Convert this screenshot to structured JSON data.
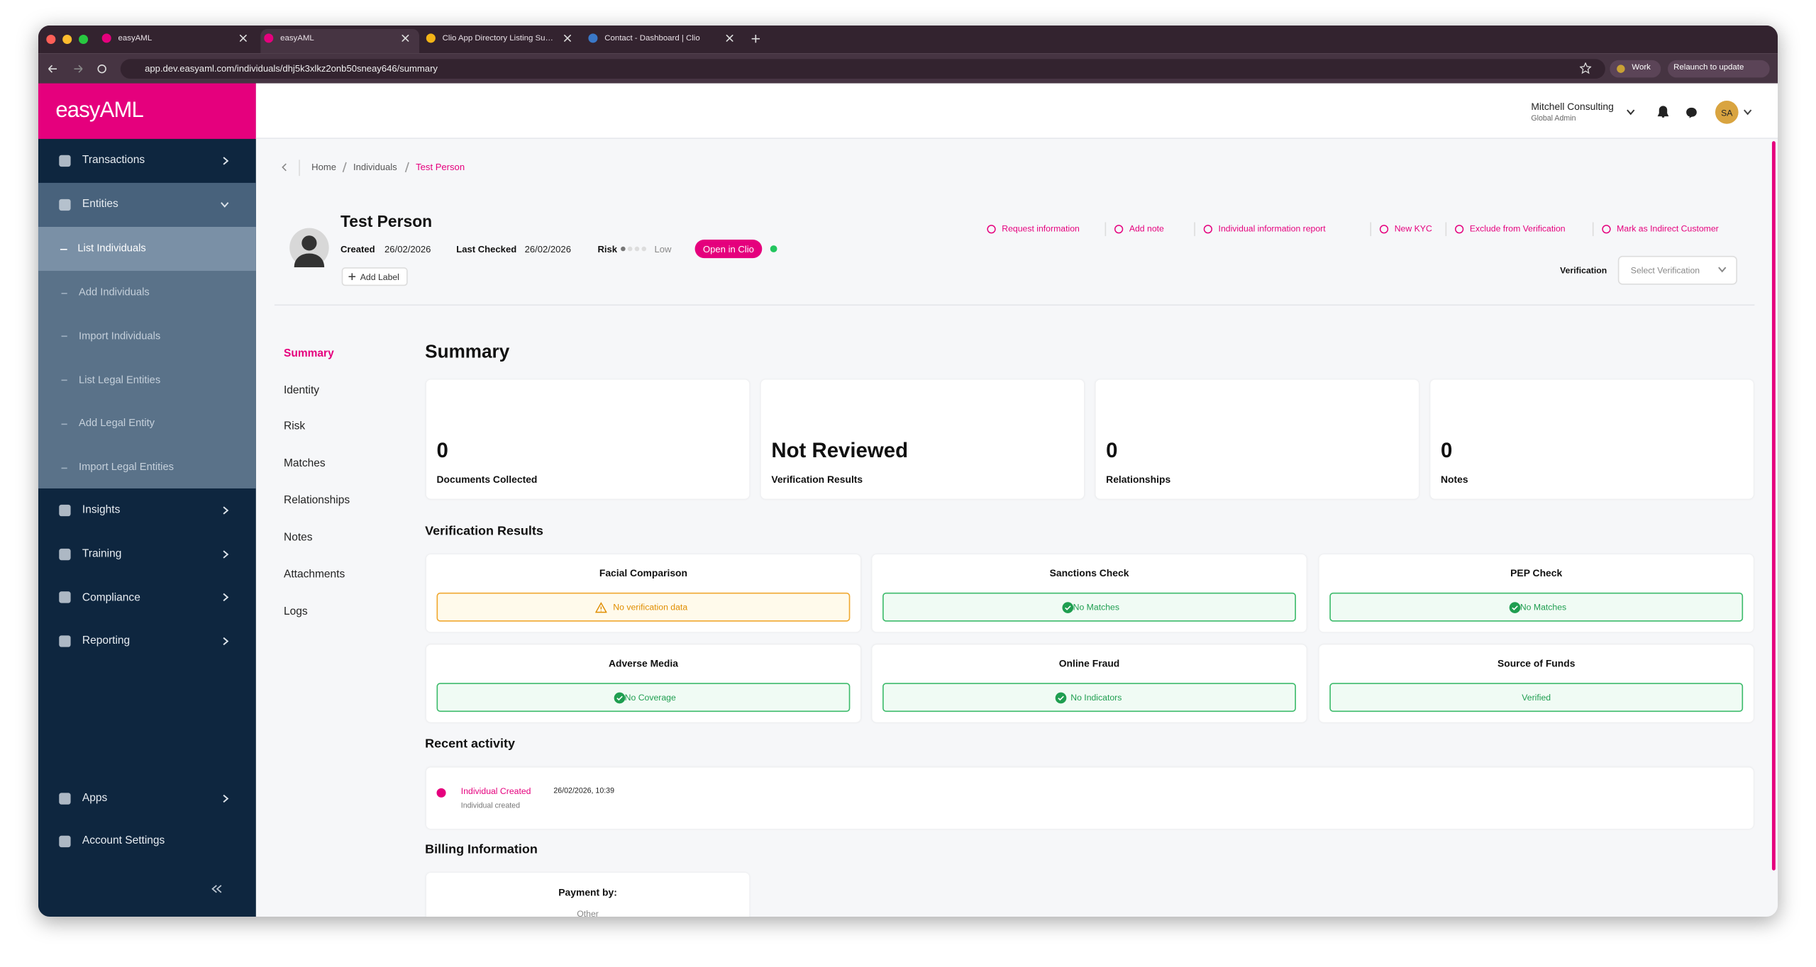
{
  "browser": {
    "tabs": [
      "easyAML",
      "easyAML",
      "Clio App Directory Listing Su…",
      "Contact - Dashboard | Clio"
    ],
    "url": "app.dev.easyaml.com/individuals/dhj5k3xlkz2onb50sneay646/summary",
    "profile_button": "Work",
    "relaunch_button": "Relaunch to update"
  },
  "sidebar": {
    "logo": "easyAML",
    "items": [
      "Transactions",
      "Entities"
    ],
    "sub_items": [
      "List Individuals",
      "Add Individuals",
      "Import Individuals",
      "List Legal Entities",
      "Add Legal Entity",
      "Import Legal Entities"
    ],
    "more_items": [
      "Insights",
      "Training",
      "Compliance",
      "Reporting"
    ],
    "bottom_items": [
      "Apps",
      "Account Settings"
    ]
  },
  "header": {
    "organisation": "Mitchell Consulting",
    "role": "Global Admin",
    "avatar": "SA"
  },
  "breadcrumb": [
    "Home",
    "Individuals",
    "Test Person"
  ],
  "profile": {
    "name": "Test Person",
    "created_label": "Created",
    "created": "26/02/2026",
    "last_checked_label": "Last Checked",
    "last_checked": "26/02/2026",
    "risk_label": "Risk",
    "risk": "Low",
    "clio_button": "Open in Clio",
    "add_label": "Add Label",
    "verification_label": "Verification",
    "verification_placeholder": "Select Verification"
  },
  "actions": [
    "Request information",
    "Add note",
    "Individual information report",
    "New KYC",
    "Exclude from Verification",
    "Mark as Indirect Customer"
  ],
  "nav": [
    "Summary",
    "Identity",
    "Risk",
    "Matches",
    "Relationships",
    "Notes",
    "Attachments",
    "Logs"
  ],
  "summary": {
    "title": "Summary",
    "cards": [
      {
        "value": "0",
        "label": "Documents Collected"
      },
      {
        "value": "Not Reviewed",
        "label": "Verification Results"
      },
      {
        "value": "0",
        "label": "Relationships"
      },
      {
        "value": "0",
        "label": "Notes"
      }
    ]
  },
  "verification": {
    "title": "Verification Results",
    "checks": [
      {
        "title": "Facial Comparison",
        "status": "No verification data",
        "state": "warning"
      },
      {
        "title": "Sanctions Check",
        "status": "No Matches",
        "state": "success"
      },
      {
        "title": "PEP Check",
        "status": "No Matches",
        "state": "success"
      },
      {
        "title": "Adverse Media",
        "status": "No Coverage",
        "state": "success"
      },
      {
        "title": "Online Fraud",
        "status": "No Indicators",
        "state": "success"
      },
      {
        "title": "Source of Funds",
        "status": "Verified",
        "state": "plain"
      }
    ]
  },
  "recent_activity": {
    "title": "Recent activity",
    "items": [
      {
        "title": "Individual Created",
        "date": "26/02/2026, 10:39",
        "description": "Individual created"
      }
    ]
  },
  "billing": {
    "title": "Billing Information",
    "payment_label": "Payment by:",
    "payment": "Other"
  }
}
